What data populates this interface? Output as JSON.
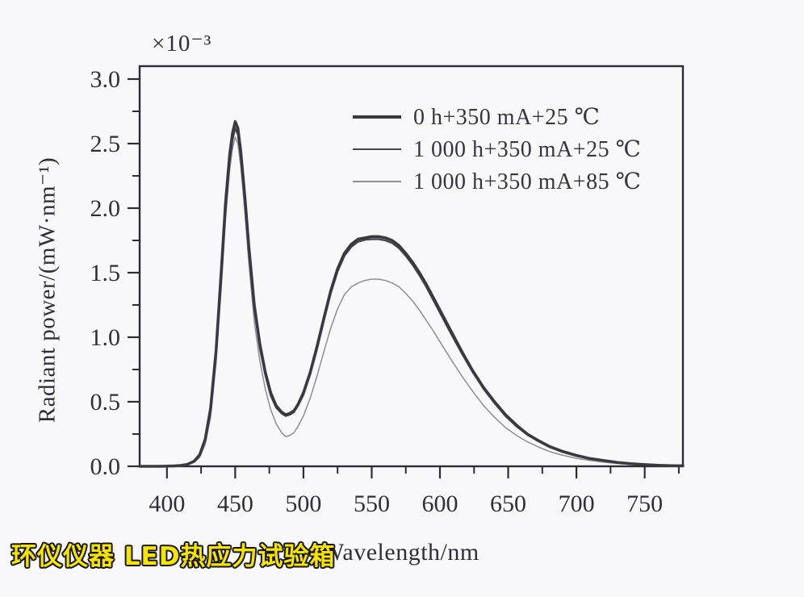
{
  "figure": {
    "multiplier": "×10⁻³",
    "y_axis_label": "Radiant power/(mW·nm⁻¹)",
    "x_axis_label": "Wavelength/nm",
    "watermark": "环仪仪器 LED热应力试验箱"
  },
  "colors": {
    "axis": "#2d2c36",
    "text": "#2f2e3a",
    "watermark_fill": "#f6e400",
    "watermark_outline": "#151515",
    "background": "#f8f8fa"
  },
  "chart_data": {
    "type": "line",
    "title": "",
    "xlabel": "Wavelength/nm",
    "ylabel": "Radiant power/(mW·nm⁻¹)",
    "y_multiplier": "×10⁻³",
    "xlim": [
      380,
      778
    ],
    "ylim": [
      0,
      3.1
    ],
    "x_major_ticks": [
      400,
      450,
      500,
      550,
      600,
      650,
      700,
      750
    ],
    "x_minor_step": 25,
    "y_major_ticks": [
      0.0,
      0.5,
      1.0,
      1.5,
      2.0,
      2.5,
      3.0
    ],
    "y_minor_step": 0.25,
    "grid": false,
    "legend_position": "upper-right-inside",
    "x": [
      380,
      395,
      405,
      410,
      415,
      420,
      424,
      428,
      432,
      436,
      440,
      443,
      446,
      448,
      450,
      452,
      454,
      457,
      460,
      464,
      468,
      472,
      476,
      480,
      484,
      487,
      490,
      493,
      496,
      500,
      505,
      510,
      515,
      520,
      525,
      530,
      535,
      540,
      545,
      550,
      555,
      560,
      565,
      570,
      575,
      580,
      585,
      590,
      595,
      600,
      608,
      616,
      624,
      632,
      640,
      648,
      656,
      664,
      672,
      680,
      690,
      700,
      710,
      720,
      730,
      740,
      750,
      760,
      770,
      778
    ],
    "series": [
      {
        "name": "0 h+350 mA+25 ℃",
        "color": "#3a3941",
        "width": 3.5,
        "values": [
          0,
          0,
          0.003,
          0.006,
          0.015,
          0.04,
          0.09,
          0.21,
          0.45,
          0.9,
          1.55,
          2.05,
          2.42,
          2.58,
          2.67,
          2.62,
          2.45,
          2.1,
          1.7,
          1.25,
          0.95,
          0.73,
          0.57,
          0.47,
          0.42,
          0.4,
          0.41,
          0.43,
          0.48,
          0.57,
          0.73,
          0.93,
          1.15,
          1.36,
          1.53,
          1.65,
          1.72,
          1.76,
          1.77,
          1.78,
          1.78,
          1.77,
          1.75,
          1.71,
          1.65,
          1.58,
          1.5,
          1.41,
          1.31,
          1.21,
          1.05,
          0.89,
          0.74,
          0.61,
          0.5,
          0.4,
          0.32,
          0.25,
          0.2,
          0.155,
          0.115,
          0.085,
          0.06,
          0.045,
          0.03,
          0.02,
          0.013,
          0.008,
          0.005,
          0.004
        ]
      },
      {
        "name": "1 000 h+350 mA+25 ℃",
        "color": "#46454d",
        "width": 2.4,
        "values": [
          0,
          0,
          0.003,
          0.006,
          0.014,
          0.038,
          0.085,
          0.2,
          0.43,
          0.87,
          1.5,
          2.0,
          2.37,
          2.53,
          2.62,
          2.57,
          2.41,
          2.06,
          1.66,
          1.22,
          0.92,
          0.71,
          0.55,
          0.455,
          0.41,
          0.39,
          0.4,
          0.42,
          0.47,
          0.555,
          0.715,
          0.91,
          1.13,
          1.34,
          1.51,
          1.63,
          1.7,
          1.74,
          1.755,
          1.76,
          1.76,
          1.75,
          1.73,
          1.69,
          1.63,
          1.56,
          1.48,
          1.39,
          1.29,
          1.19,
          1.03,
          0.875,
          0.73,
          0.6,
          0.49,
          0.39,
          0.31,
          0.245,
          0.195,
          0.15,
          0.11,
          0.08,
          0.058,
          0.042,
          0.028,
          0.018,
          0.012,
          0.007,
          0.004,
          0.003
        ]
      },
      {
        "name": "1 000 h+350 mA+85 ℃",
        "color": "#8e8d95",
        "width": 1.5,
        "values": [
          0,
          0,
          0.002,
          0.005,
          0.012,
          0.03,
          0.07,
          0.17,
          0.38,
          0.8,
          1.42,
          1.92,
          2.3,
          2.46,
          2.55,
          2.5,
          2.33,
          1.98,
          1.57,
          1.12,
          0.82,
          0.6,
          0.44,
          0.33,
          0.26,
          0.23,
          0.24,
          0.26,
          0.31,
          0.39,
          0.53,
          0.7,
          0.89,
          1.07,
          1.22,
          1.33,
          1.39,
          1.42,
          1.44,
          1.45,
          1.45,
          1.44,
          1.42,
          1.39,
          1.34,
          1.28,
          1.21,
          1.13,
          1.05,
          0.965,
          0.83,
          0.7,
          0.58,
          0.47,
          0.38,
          0.3,
          0.24,
          0.19,
          0.15,
          0.115,
          0.085,
          0.062,
          0.045,
          0.032,
          0.022,
          0.014,
          0.009,
          0.005,
          0.003,
          0.002
        ]
      }
    ]
  }
}
